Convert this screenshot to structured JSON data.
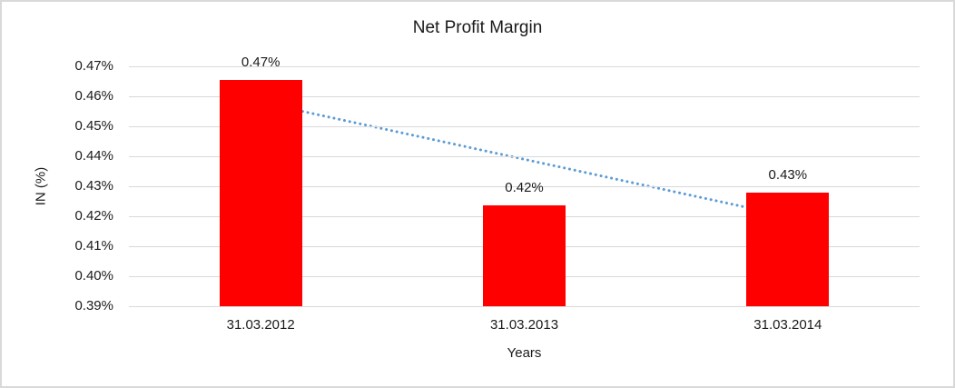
{
  "window": {
    "background": "#FFFFFF",
    "border_color": "#D9D9D9"
  },
  "chart_data": {
    "type": "bar",
    "title": "Net Profit Margin",
    "xlabel": "Years",
    "ylabel": "IN (%)",
    "categories": [
      "31.03.2012",
      "31.03.2013",
      "31.03.2014"
    ],
    "values": [
      0.4655,
      0.4236,
      0.4279
    ],
    "data_labels": [
      "0.47%",
      "0.42%",
      "0.43%"
    ],
    "ylim": [
      0.39,
      0.47
    ],
    "ytick_step": 0.01,
    "ytick_labels": [
      "0.39%",
      "0.40%",
      "0.41%",
      "0.42%",
      "0.43%",
      "0.44%",
      "0.45%",
      "0.46%",
      "0.47%"
    ],
    "grid": true,
    "legend": "none",
    "gridline_color": "#D9D9D9",
    "bar_color": "#FF0000",
    "text_color": "#1A1A1A",
    "trendline": {
      "type": "linear",
      "style": "dotted",
      "color": "#5B9BD5",
      "start_value": 0.458,
      "end_value": 0.42
    }
  }
}
